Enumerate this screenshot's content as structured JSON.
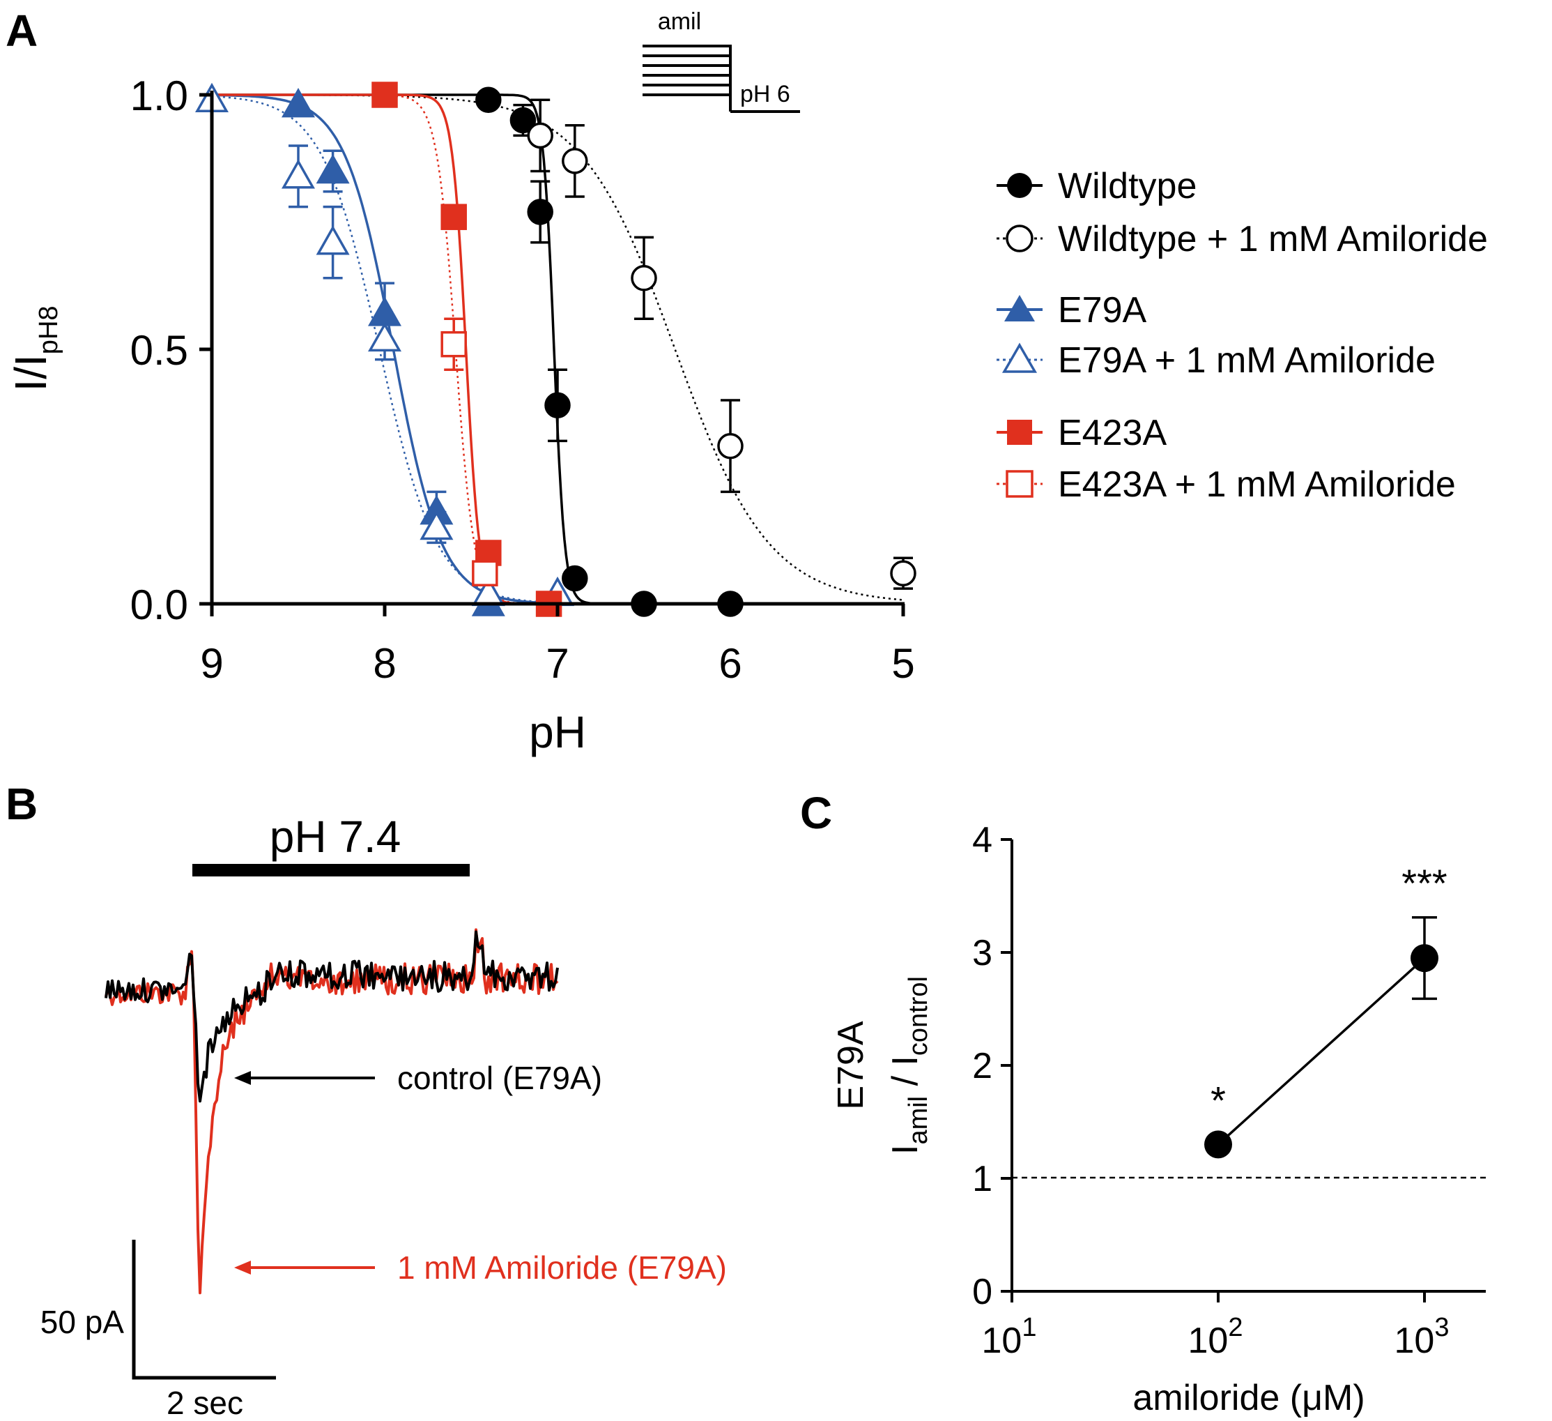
{
  "colors": {
    "wildtype": "#000000",
    "e79a": "#2f5ea8",
    "e423a": "#e0301e",
    "axis": "#000000",
    "trace_control": "#000000",
    "trace_amiloride": "#e0301e"
  },
  "panels": {
    "a_letter": "A",
    "b_letter": "B",
    "c_letter": "C"
  },
  "inset": {
    "top_label": "amil",
    "bottom_label": "pH 6"
  },
  "panel_b": {
    "stimulus_label": "pH 7.4",
    "control_label": "control (E79A)",
    "amiloride_label": "1 mM Amiloride (E79A)",
    "scale_current": "50 pA",
    "scale_time": "2 sec"
  },
  "chart_data": [
    {
      "id": "panel-a",
      "type": "scatter",
      "title": "",
      "xlabel": "pH",
      "ylabel_main": "I/I",
      "ylabel_sub": "pH8",
      "xlim": [
        9,
        5
      ],
      "ylim": [
        0,
        1.0
      ],
      "xticks": [
        {
          "value": 9,
          "label": "9"
        },
        {
          "value": 8,
          "label": "8"
        },
        {
          "value": 7,
          "label": "7"
        },
        {
          "value": 6,
          "label": "6"
        },
        {
          "value": 5,
          "label": "5"
        }
      ],
      "yticks": [
        {
          "value": 0,
          "label": "0.0"
        },
        {
          "value": 0.5,
          "label": "0.5"
        },
        {
          "value": 1.0,
          "label": "1.0"
        }
      ],
      "series": [
        {
          "name": "Wildtype",
          "color": "#000000",
          "marker": "circle",
          "filled": true,
          "dashed": false,
          "fit": {
            "pH50": 7.02,
            "n": 14
          },
          "points": [
            {
              "x": 7.4,
              "y": 0.99,
              "err": 0
            },
            {
              "x": 7.2,
              "y": 0.95,
              "err": 0.03
            },
            {
              "x": 7.1,
              "y": 0.77,
              "err": 0.06
            },
            {
              "x": 7.0,
              "y": 0.39,
              "err": 0.07
            },
            {
              "x": 6.9,
              "y": 0.05,
              "err": 0
            },
            {
              "x": 6.5,
              "y": 0.0,
              "err": 0
            },
            {
              "x": 6.0,
              "y": 0.0,
              "err": 0
            }
          ]
        },
        {
          "name": "Wildtype + 1 mM Amiloride",
          "color": "#000000",
          "marker": "circle",
          "filled": false,
          "dashed": true,
          "fit": {
            "pH50": 6.32,
            "n": 1.6
          },
          "points": [
            {
              "x": 7.1,
              "y": 0.92,
              "err": 0.07
            },
            {
              "x": 6.9,
              "y": 0.87,
              "err": 0.07
            },
            {
              "x": 6.5,
              "y": 0.64,
              "err": 0.08
            },
            {
              "x": 6.0,
              "y": 0.31,
              "err": 0.09
            },
            {
              "x": 5.0,
              "y": 0.06,
              "err": 0.03
            }
          ]
        },
        {
          "name": "E79A",
          "color": "#2f5ea8",
          "marker": "triangle",
          "filled": true,
          "dashed": false,
          "fit": {
            "pH50": 7.95,
            "n": 3.1
          },
          "points": [
            {
              "x": 8.5,
              "y": 0.98,
              "err": 0
            },
            {
              "x": 8.3,
              "y": 0.85,
              "err": 0.04
            },
            {
              "x": 8.0,
              "y": 0.57,
              "err": 0.06
            },
            {
              "x": 7.7,
              "y": 0.18,
              "err": 0.04
            },
            {
              "x": 7.4,
              "y": 0.0,
              "err": 0
            }
          ]
        },
        {
          "name": "E79A + 1 mM Amiloride",
          "color": "#2f5ea8",
          "marker": "triangle",
          "filled": false,
          "dashed": true,
          "fit": {
            "pH50": 8.03,
            "n": 2.6
          },
          "points": [
            {
              "x": 9.0,
              "y": 0.99,
              "err": 0
            },
            {
              "x": 8.5,
              "y": 0.84,
              "err": 0.06
            },
            {
              "x": 8.3,
              "y": 0.71,
              "err": 0.07
            },
            {
              "x": 8.0,
              "y": 0.52,
              "err": 0.04
            },
            {
              "x": 7.7,
              "y": 0.15,
              "err": 0.03
            },
            {
              "x": 7.4,
              "y": 0.02,
              "err": 0
            },
            {
              "x": 7.0,
              "y": 0.02,
              "err": 0
            }
          ]
        },
        {
          "name": "E423A",
          "color": "#e0301e",
          "marker": "square",
          "filled": true,
          "dashed": false,
          "fit": {
            "pH50": 7.53,
            "n": 11
          },
          "points": [
            {
              "x": 8.0,
              "y": 1.0,
              "err": 0
            },
            {
              "x": 7.6,
              "y": 0.76,
              "err": 0.02
            },
            {
              "x": 7.4,
              "y": 0.1,
              "err": 0.02
            },
            {
              "x": 7.05,
              "y": 0.0,
              "err": 0
            }
          ]
        },
        {
          "name": "E423A + 1 mM Amiloride",
          "color": "#e0301e",
          "marker": "square",
          "filled": false,
          "dashed": true,
          "fit": {
            "pH50": 7.59,
            "n": 8
          },
          "points": [
            {
              "x": 7.6,
              "y": 0.51,
              "err": 0.05
            },
            {
              "x": 7.42,
              "y": 0.06,
              "err": 0.02
            }
          ]
        }
      ]
    },
    {
      "id": "panel-c",
      "type": "line",
      "title": "",
      "xlabel": "amiloride (μM)",
      "ylabel_line1": "E79A",
      "ylabel_main_a": "I",
      "ylabel_sub_a": "amil",
      "ylabel_mid": " / I",
      "ylabel_sub_b": "control",
      "xscale": "log",
      "xlim": [
        10,
        2000
      ],
      "ylim": [
        0,
        4
      ],
      "xticks": [
        {
          "value": 10,
          "base": "10",
          "exp": "1"
        },
        {
          "value": 100,
          "base": "10",
          "exp": "2"
        },
        {
          "value": 1000,
          "base": "10",
          "exp": "3"
        }
      ],
      "yticks": [
        {
          "value": 0,
          "label": "0"
        },
        {
          "value": 1,
          "label": "1"
        },
        {
          "value": 2,
          "label": "2"
        },
        {
          "value": 3,
          "label": "3"
        },
        {
          "value": 4,
          "label": "4"
        }
      ],
      "reference_line": 1,
      "points": [
        {
          "x": 100,
          "y": 1.3,
          "err": 0,
          "sig": "*"
        },
        {
          "x": 1000,
          "y": 2.95,
          "err": 0.36,
          "sig": "***"
        }
      ]
    }
  ]
}
